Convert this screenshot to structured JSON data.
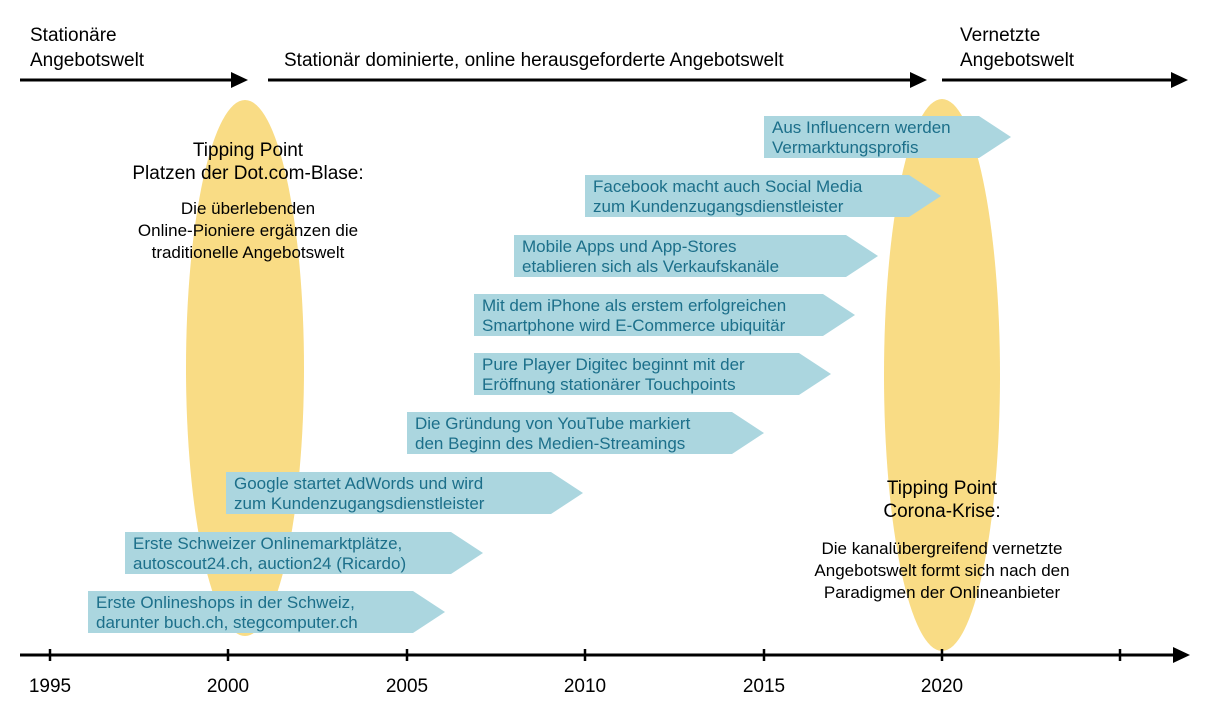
{
  "eras": [
    {
      "lines": [
        "Stationäre",
        "Angebotswelt"
      ]
    },
    {
      "lines": [
        "Stationär dominierte, online herausgeforderte Angebotswelt"
      ]
    },
    {
      "lines": [
        "Vernetzte",
        "Angebotswelt"
      ]
    }
  ],
  "tipping_points": [
    {
      "heading": [
        "Tipping Point",
        "Platzen der Dot.com-Blase:"
      ],
      "body": [
        "Die überlebenden",
        "Online-Pioniere ergänzen die",
        "traditionelle Angebotswelt"
      ]
    },
    {
      "heading": [
        "Tipping Point",
        "Corona-Krise:"
      ],
      "body": [
        "Die kanalübergreifend vernetzte",
        "Angebotswelt formt sich nach den",
        "Paradigmen der Onlineanbieter"
      ]
    }
  ],
  "milestones": [
    {
      "lines": [
        "Aus Influencern werden",
        "Vermarktungsprofis"
      ]
    },
    {
      "lines": [
        "Facebook macht auch Social Media",
        "zum Kundenzugangsdienstleister"
      ]
    },
    {
      "lines": [
        "Mobile Apps und App-Stores",
        "etablieren sich als Verkaufskanäle"
      ]
    },
    {
      "lines": [
        "Mit dem iPhone als erstem erfolgreichen",
        "Smartphone wird E-Commerce ubiquitär"
      ]
    },
    {
      "lines": [
        "Pure Player Digitec beginnt mit der",
        "Eröffnung stationärer Touchpoints"
      ]
    },
    {
      "lines": [
        "Die Gründung von YouTube markiert",
        "den Beginn des Medien-Streamings"
      ]
    },
    {
      "lines": [
        "Google startet AdWords und wird",
        "zum Kundenzugangsdienstleister"
      ]
    },
    {
      "lines": [
        "Erste Schweizer Onlinemarktplätze,",
        "autoscout24.ch, auction24 (Ricardo)"
      ]
    },
    {
      "lines": [
        "Erste Onlineshops in der Schweiz,",
        "darunter buch.ch, stegcomputer.ch"
      ]
    }
  ],
  "axis": {
    "tick_labels": [
      "1995",
      "2000",
      "2005",
      "2010",
      "2015",
      "2020"
    ]
  },
  "colors": {
    "arrow_fill": "#abd6df",
    "arrow_text": "#1c6f8a",
    "ellipse": "#f9dc85",
    "line": "#000000",
    "text": "#000000"
  }
}
